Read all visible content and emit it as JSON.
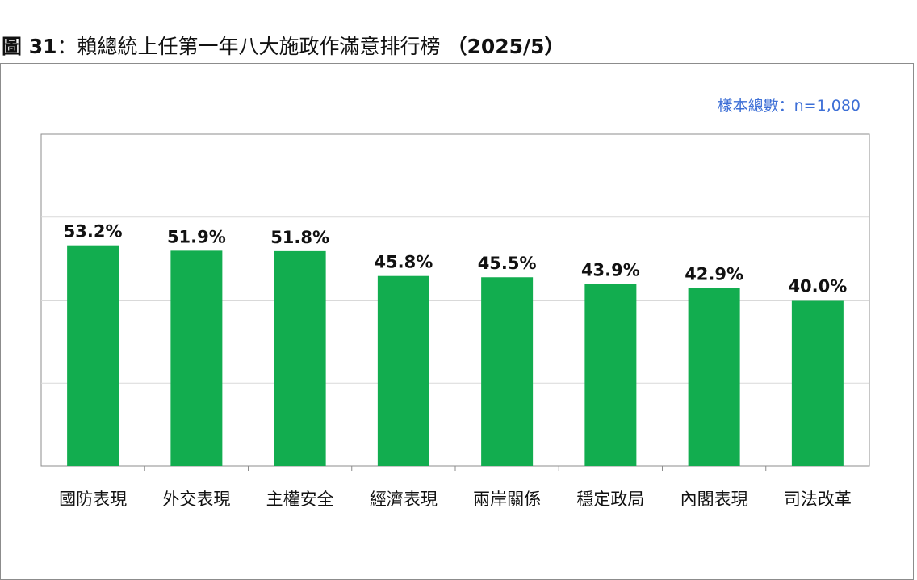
{
  "figure": {
    "title_prefix": "圖 31",
    "title_text": "：賴總統上任第一年八大施政作滿意排行榜 ",
    "title_date": "（2025/5）",
    "sample_note": "樣本總數：n=1,080"
  },
  "chart_data": {
    "type": "bar",
    "title": "圖 31：賴總統上任第一年八大施政作滿意排行榜 （2025/5）",
    "categories": [
      "國防表現",
      "外交表現",
      "主權安全",
      "經濟表現",
      "兩岸關係",
      "穩定政局",
      "內閣表現",
      "司法改革"
    ],
    "values": [
      53.2,
      51.9,
      51.8,
      45.8,
      45.5,
      43.9,
      42.9,
      40.0
    ],
    "value_labels": [
      "53.2%",
      "51.9%",
      "51.8%",
      "45.8%",
      "45.5%",
      "43.9%",
      "42.9%",
      "40.0%"
    ],
    "xlabel": "",
    "ylabel": "",
    "ylim": [
      0,
      80
    ],
    "grid": true,
    "bar_color": "#12ad4f",
    "grid_color": "#d9d9d9"
  }
}
